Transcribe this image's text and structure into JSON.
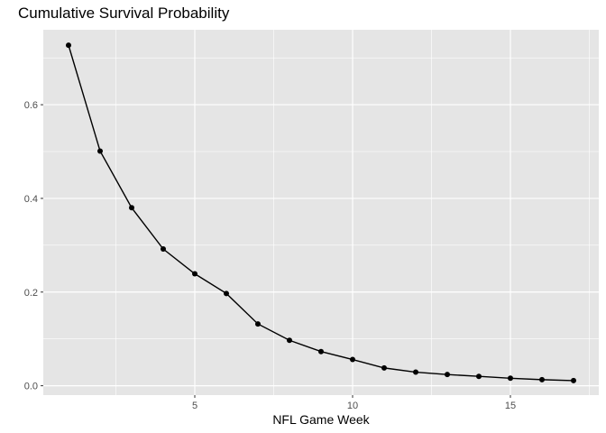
{
  "chart_data": {
    "type": "line",
    "title": "Cumulative Survival Probability",
    "xlabel": "NFL Game Week",
    "ylabel": "",
    "x_ticks": [
      5,
      10,
      15
    ],
    "y_ticks": [
      0.0,
      0.2,
      0.4,
      0.6
    ],
    "y_tick_labels": [
      "0.0",
      "0.2",
      "0.4",
      "0.6"
    ],
    "xlim": [
      0.2,
      17.8
    ],
    "ylim": [
      -0.02,
      0.76
    ],
    "grid": true,
    "panel_background": "#e5e5e5",
    "grid_color": "#ffffff",
    "line_color": "#000000",
    "point_color": "#000000",
    "series": [
      {
        "x": [
          1,
          2,
          3,
          4,
          5,
          6,
          7,
          8,
          9,
          10,
          11,
          12,
          13,
          14,
          15,
          16,
          17
        ],
        "values": [
          0.727,
          0.501,
          0.38,
          0.292,
          0.239,
          0.197,
          0.132,
          0.097,
          0.073,
          0.056,
          0.038,
          0.029,
          0.024,
          0.02,
          0.016,
          0.013,
          0.011
        ]
      }
    ]
  }
}
